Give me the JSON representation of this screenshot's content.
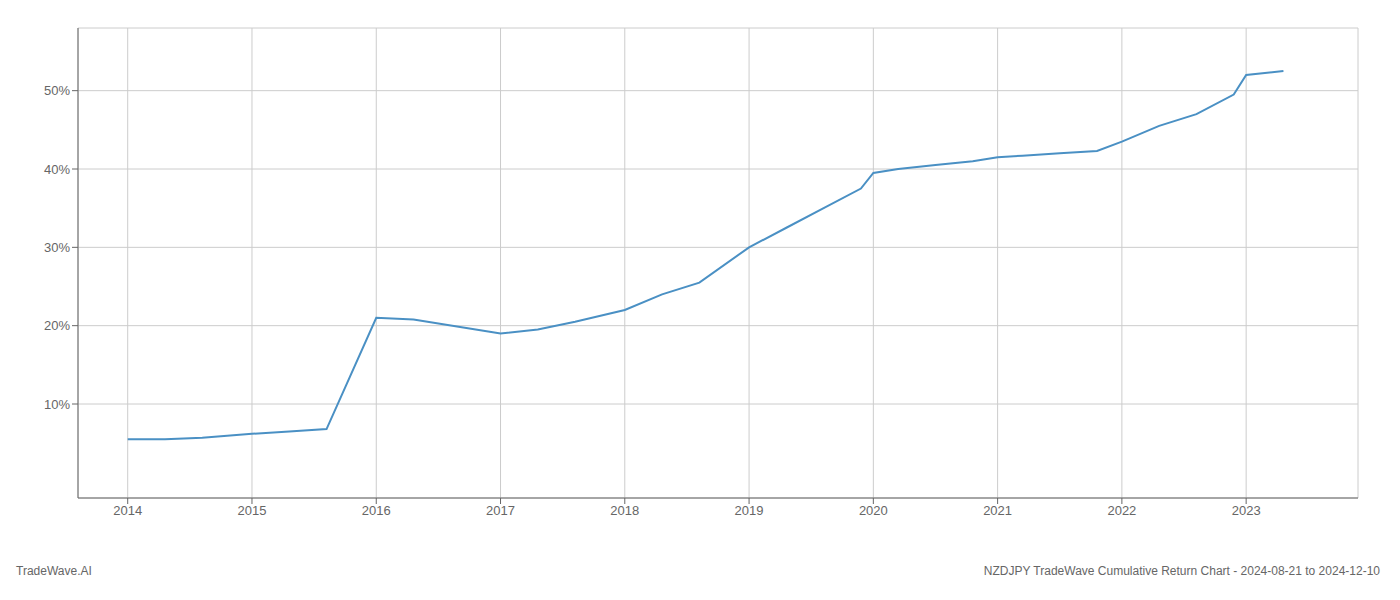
{
  "chart_data": {
    "type": "line",
    "title": "NZDJPY TradeWave Cumulative Return Chart - 2024-08-21 to 2024-12-10",
    "annotations": [
      "TradeWave.AI"
    ],
    "x": [
      2014.0,
      2014.3,
      2014.6,
      2015.0,
      2015.3,
      2015.6,
      2016.0,
      2016.3,
      2017.0,
      2017.3,
      2017.6,
      2018.0,
      2018.3,
      2018.6,
      2019.0,
      2019.3,
      2019.6,
      2019.9,
      2020.0,
      2020.2,
      2020.5,
      2020.8,
      2021.0,
      2021.2,
      2021.5,
      2021.8,
      2022.0,
      2022.3,
      2022.6,
      2022.9,
      2023.0,
      2023.3
    ],
    "values": [
      5.5,
      5.5,
      5.7,
      6.2,
      6.5,
      6.8,
      21.0,
      20.8,
      19.0,
      19.5,
      20.5,
      22.0,
      24.0,
      25.5,
      30.0,
      32.5,
      35.0,
      37.5,
      39.5,
      40.0,
      40.5,
      41.0,
      41.5,
      41.7,
      42.0,
      42.3,
      43.5,
      45.5,
      47.0,
      49.5,
      52.0,
      52.5
    ],
    "color": "#4a90c4",
    "xlim": [
      2013.6,
      2023.9
    ],
    "ylim": [
      -2,
      58
    ],
    "xticks": [
      2014,
      2015,
      2016,
      2017,
      2018,
      2019,
      2020,
      2021,
      2022,
      2023
    ],
    "yticks": [
      {
        "value": 10,
        "label": "10%"
      },
      {
        "value": 20,
        "label": "20%"
      },
      {
        "value": 30,
        "label": "30%"
      },
      {
        "value": 40,
        "label": "40%"
      },
      {
        "value": 50,
        "label": "50%"
      }
    ],
    "grid": true
  }
}
